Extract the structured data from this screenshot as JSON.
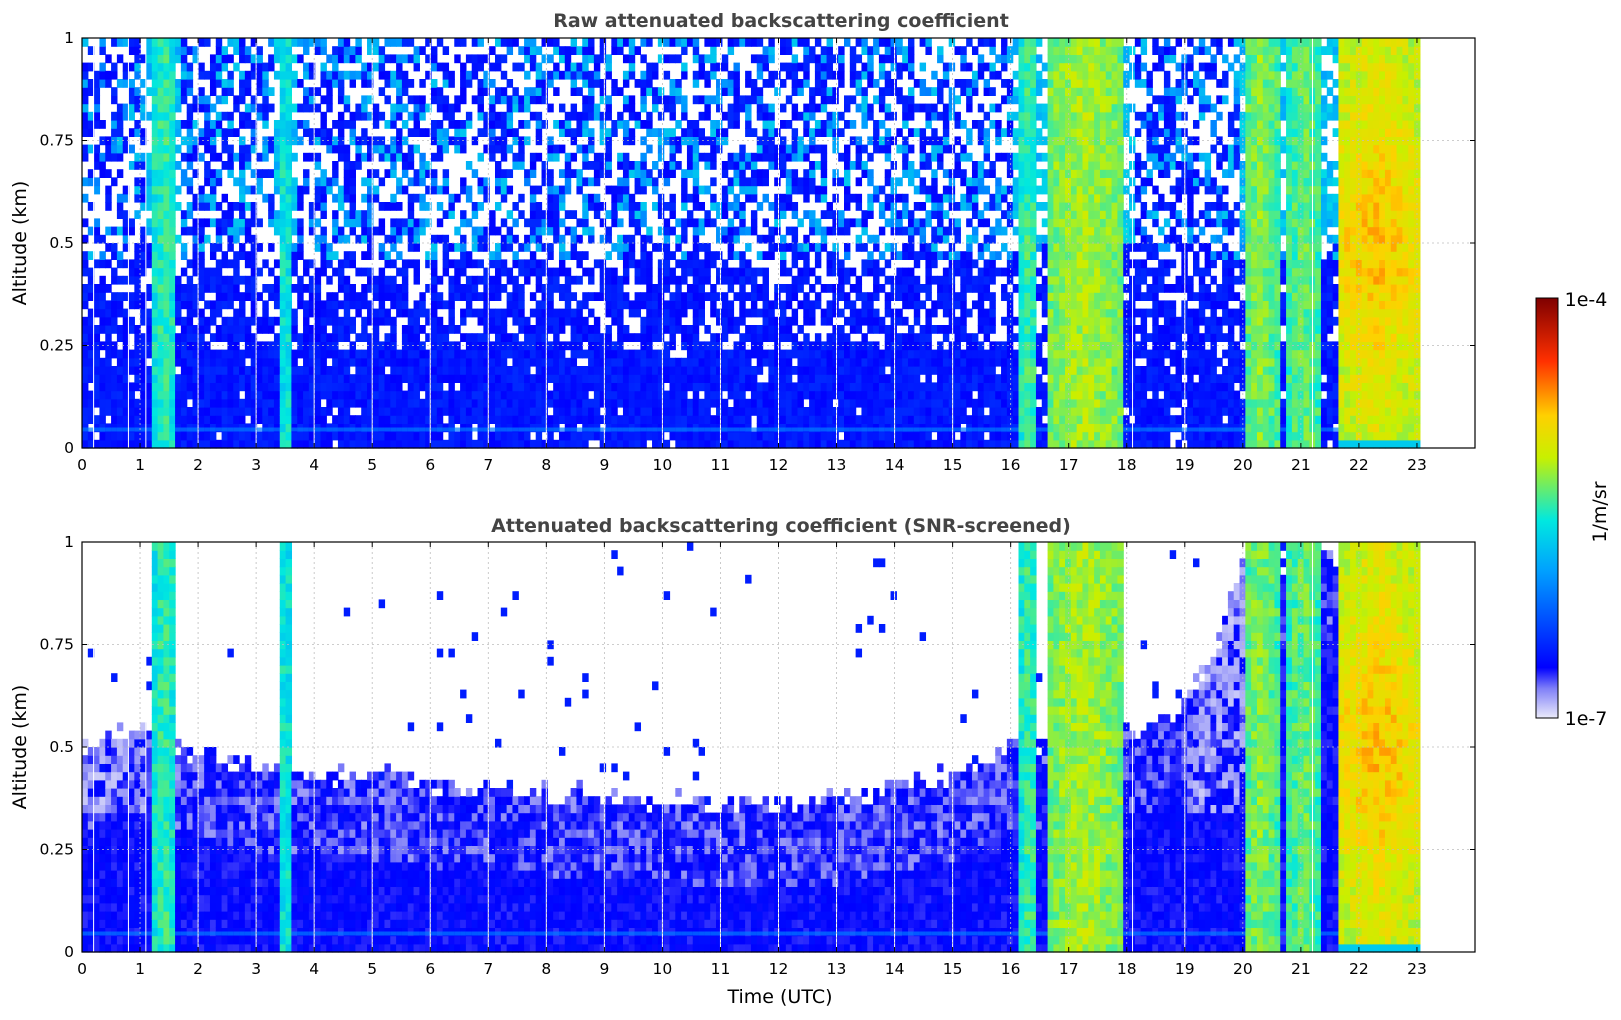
{
  "chart_data": [
    {
      "type": "heatmap",
      "title": "Raw attenuated backscattering coefficient",
      "xlabel": "",
      "ylabel": "Altitude (km)",
      "xlim": [
        0,
        24
      ],
      "ylim": [
        0,
        1
      ],
      "x_ticks": [
        "0",
        "1",
        "2",
        "3",
        "4",
        "5",
        "6",
        "7",
        "8",
        "9",
        "10",
        "11",
        "12",
        "13",
        "14",
        "15",
        "16",
        "17",
        "18",
        "19",
        "20",
        "21",
        "22",
        "23"
      ],
      "y_ticks": [
        "0",
        "0.25",
        "0.5",
        "0.75",
        "1"
      ],
      "grid": true,
      "data_end_time": 23.05,
      "screened": false
    },
    {
      "type": "heatmap",
      "title": "Attenuated backscattering coefficient (SNR-screened)",
      "xlabel": "Time (UTC)",
      "ylabel": "Altitude (km)",
      "xlim": [
        0,
        24
      ],
      "ylim": [
        0,
        1
      ],
      "x_ticks": [
        "0",
        "1",
        "2",
        "3",
        "4",
        "5",
        "6",
        "7",
        "8",
        "9",
        "10",
        "11",
        "12",
        "13",
        "14",
        "15",
        "16",
        "17",
        "18",
        "19",
        "20",
        "21",
        "22",
        "23"
      ],
      "y_ticks": [
        "0",
        "0.25",
        "0.5",
        "0.75",
        "1"
      ],
      "grid": true,
      "data_end_time": 23.05,
      "screened": true,
      "signal_top_km": [
        [
          0.0,
          0.5
        ],
        [
          1.0,
          0.55
        ],
        [
          2.0,
          0.48
        ],
        [
          3.0,
          0.45
        ],
        [
          4.0,
          0.44
        ],
        [
          5.0,
          0.43
        ],
        [
          6.0,
          0.41
        ],
        [
          7.0,
          0.39
        ],
        [
          8.0,
          0.39
        ],
        [
          9.0,
          0.38
        ],
        [
          10.0,
          0.37
        ],
        [
          11.0,
          0.36
        ],
        [
          12.0,
          0.36
        ],
        [
          13.0,
          0.37
        ],
        [
          14.0,
          0.4
        ],
        [
          15.0,
          0.43
        ],
        [
          15.7,
          0.47
        ],
        [
          16.0,
          0.5
        ],
        [
          18.5,
          0.55
        ],
        [
          19.5,
          0.7
        ],
        [
          20.0,
          0.95
        ]
      ],
      "cloud_bands_utc": [
        [
          1.2,
          1.7
        ],
        [
          3.35,
          3.65
        ],
        [
          16.1,
          16.5
        ],
        [
          16.6,
          18.0
        ],
        [
          20.0,
          20.6
        ],
        [
          20.7,
          21.4
        ],
        [
          21.6,
          23.05
        ]
      ]
    }
  ],
  "colorbar": {
    "label": "1/m/sr",
    "min_label": "1e-7",
    "max_label": "1e-4",
    "colormap": [
      "#ebebfa",
      "#0000ff",
      "#00d8ff",
      "#f0f000",
      "#ff2000",
      "#7f0000"
    ]
  }
}
